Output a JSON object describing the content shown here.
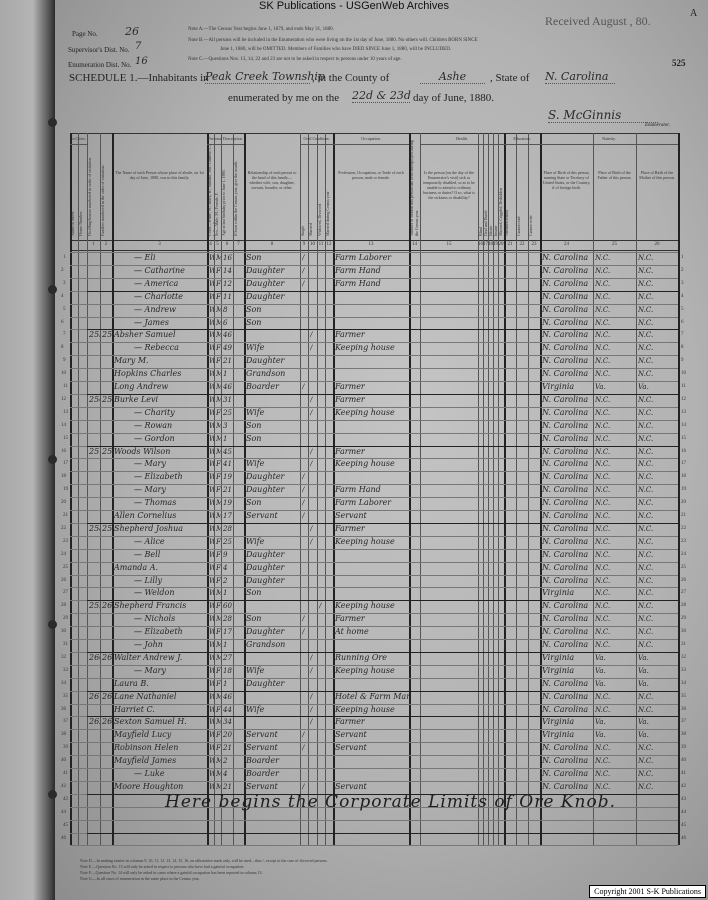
{
  "banner": "SK Publications - USGenWeb Archives",
  "received_stamp": "Received August , 80.",
  "corner_letter": "A",
  "sheet_number": "525",
  "page_info": {
    "page_label": "Page No.",
    "page_value": "26",
    "supervisor_label": "Supervisor's Dist. No.",
    "supervisor_value": "7",
    "enumeration_label": "Enumeration Dist. No.",
    "enumeration_value": "16"
  },
  "notes": [
    "Note A.—The Census Year begins June 1, 1879, and ends May 31, 1880.",
    "Note B.—All persons will be included in the Enumeration who were living on the 1st day of June, 1880. No others will. Children BORN SINCE",
    "June 1, 1880, will be OMITTED. Members of Families who have DIED SINCE June 1, 1880, will be INCLUDED.",
    "Note C.—Questions Nos. 13, 14, 22 and 23 are not to be asked in respect to persons under 10 years of age."
  ],
  "schedule": {
    "prefix": "SCHEDULE 1.—Inhabitants in",
    "township": "Peak Creek Township",
    "county_label": ", in the County of",
    "county": "Ashe",
    "state_label": ", State of",
    "state": "N. Carolina",
    "enumerated_label": "enumerated by me on the",
    "dates": "22d & 23d",
    "enumerated_suffix": "day of June, 1880.",
    "enumerator_signature": "S. McGinnis",
    "enumerator_label": "Enumerator."
  },
  "column_headers": [
    "Name of Street.",
    "House Number.",
    "Dwelling-houses numbered in order of visitation.",
    "Families numbered in the order of visitation.",
    "The Name of each Person whose place of abode, on 1st day of June, 1880, was in this family.",
    "Color—White, W.; Black, B.; Mulatto, Mu.; Chinese, C.; Indian, I.",
    "Sex—Male, M.; Female, F.",
    "Age at last birthday prior to June 1, 1880.",
    "If born within the Census year, give the month.",
    "Relationship of each person to the head of this family—whether wife, son, daughter, servant, boarder, or other.",
    "Single",
    "Married",
    "Widowed, Divorced",
    "Married during Census year",
    "Profession, Occupation, or Trade of each person, male or female.",
    "Number of months this person has been unemployed during the Census year.",
    "Is the person [on the day of the Enumerator's visit] sick or temporarily disabled, so as to be unable to attend to ordinary business or duties? If so, what is the sickness or disability?",
    "Blind",
    "Deaf and Dumb",
    "Idiotic",
    "Insane",
    "Maimed, Crippled, Bedridden",
    "Attended school",
    "Cannot read",
    "Cannot write",
    "Place of Birth of this person, naming State or Territory of United States, or the Country, if of foreign birth.",
    "Place of Birth of the Father of this person.",
    "Place of Birth of the Mother of this person."
  ],
  "group_headers": [
    "In Cities.",
    "Personal Description.",
    "Civil Condition.",
    "Occupation.",
    "Health.",
    "Education.",
    "Nativity."
  ],
  "column_numbers": [
    "1",
    "2",
    "3",
    "4",
    "5",
    "6",
    "7",
    "8",
    "9",
    "10",
    "11",
    "12",
    "13",
    "14",
    "15",
    "16",
    "17",
    "18",
    "19",
    "20",
    "21",
    "22",
    "23",
    "24",
    "25",
    "26"
  ],
  "rows": [
    {
      "n": "1",
      "dw": "",
      "fam": "",
      "name": "Eli",
      "color": "W",
      "sex": "M",
      "age": "16",
      "rel": "Son",
      "single": "/",
      "occ": "Farm Laborer",
      "bp": "N. Carolina",
      "fbp": "N.C.",
      "mbp": "N.C."
    },
    {
      "n": "2",
      "dw": "",
      "fam": "",
      "name": "Catharine",
      "color": "W",
      "sex": "F",
      "age": "14",
      "rel": "Daughter",
      "single": "/",
      "occ": "Farm Hand",
      "bp": "N. Carolina",
      "fbp": "N.C.",
      "mbp": "N.C."
    },
    {
      "n": "3",
      "dw": "",
      "fam": "",
      "name": "America",
      "color": "W",
      "sex": "F",
      "age": "12",
      "rel": "Daughter",
      "single": "/",
      "occ": "Farm Hand",
      "bp": "N. Carolina",
      "fbp": "N.C.",
      "mbp": "N.C."
    },
    {
      "n": "4",
      "dw": "",
      "fam": "",
      "name": "Charlotte",
      "color": "W",
      "sex": "F",
      "age": "11",
      "rel": "Daughter",
      "single": "",
      "occ": "",
      "bp": "N. Carolina",
      "fbp": "N.C.",
      "mbp": "N.C."
    },
    {
      "n": "5",
      "dw": "",
      "fam": "",
      "name": "Andrew",
      "color": "W",
      "sex": "M",
      "age": "8",
      "rel": "Son",
      "single": "",
      "occ": "",
      "bp": "N. Carolina",
      "fbp": "N.C.",
      "mbp": "N.C."
    },
    {
      "n": "6",
      "dw": "",
      "fam": "",
      "name": "James",
      "color": "W",
      "sex": "M",
      "age": "6",
      "rel": "Son",
      "single": "",
      "occ": "",
      "bp": "N. Carolina",
      "fbp": "N.C.",
      "mbp": "N.C."
    },
    {
      "n": "7",
      "dw": "255",
      "fam": "256",
      "name": "Absher Samuel",
      "color": "W",
      "sex": "M",
      "age": "46",
      "rel": "",
      "single": "",
      "married": "/",
      "occ": "Farmer",
      "bp": "N. Carolina",
      "fbp": "N.C.",
      "mbp": "N.C."
    },
    {
      "n": "8",
      "dw": "",
      "fam": "",
      "name": "Rebecca",
      "color": "W",
      "sex": "F",
      "age": "49",
      "rel": "Wife",
      "married": "/",
      "occ": "Keeping house",
      "bp": "N. Carolina",
      "fbp": "N.C.",
      "mbp": "N.C."
    },
    {
      "n": "9",
      "dw": "",
      "fam": "",
      "name": "Mary M.",
      "color": "W",
      "sex": "F",
      "age": "21",
      "rel": "Daughter",
      "single": "",
      "occ": "",
      "bp": "N. Carolina",
      "fbp": "N.C.",
      "mbp": "N.C."
    },
    {
      "n": "10",
      "dw": "",
      "fam": "",
      "name": "Hopkins Charles",
      "color": "W",
      "sex": "M",
      "age": "1",
      "rel": "Grandson",
      "single": "",
      "occ": "",
      "bp": "N. Carolina",
      "fbp": "N.C.",
      "mbp": "N.C."
    },
    {
      "n": "11",
      "dw": "",
      "fam": "",
      "name": "Long Andrew",
      "color": "W",
      "sex": "M",
      "age": "46",
      "rel": "Boarder",
      "single": "/",
      "occ": "Farmer",
      "bp": "Virginia",
      "fbp": "Va.",
      "mbp": "Va."
    },
    {
      "n": "12",
      "dw": "256",
      "fam": "257",
      "name": "Burke Levi",
      "color": "W",
      "sex": "M",
      "age": "31",
      "rel": "",
      "married": "/",
      "occ": "Farmer",
      "bp": "N. Carolina",
      "fbp": "N.C.",
      "mbp": "N.C."
    },
    {
      "n": "13",
      "dw": "",
      "fam": "",
      "name": "Charity",
      "color": "W",
      "sex": "F",
      "age": "25",
      "rel": "Wife",
      "married": "/",
      "occ": "Keeping house",
      "bp": "N. Carolina",
      "fbp": "N.C.",
      "mbp": "N.C."
    },
    {
      "n": "14",
      "dw": "",
      "fam": "",
      "name": "Rowan",
      "color": "W",
      "sex": "M",
      "age": "3",
      "rel": "Son",
      "single": "",
      "occ": "",
      "bp": "N. Carolina",
      "fbp": "N.C.",
      "mbp": "N.C."
    },
    {
      "n": "15",
      "dw": "",
      "fam": "",
      "name": "Gordon",
      "color": "W",
      "sex": "M",
      "age": "1",
      "rel": "Son",
      "single": "",
      "occ": "",
      "bp": "N. Carolina",
      "fbp": "N.C.",
      "mbp": "N.C."
    },
    {
      "n": "16",
      "dw": "257",
      "fam": "258",
      "name": "Woods Wilson",
      "color": "W",
      "sex": "M",
      "age": "45",
      "rel": "",
      "married": "/",
      "occ": "Farmer",
      "bp": "N. Carolina",
      "fbp": "N.C.",
      "mbp": "N.C."
    },
    {
      "n": "17",
      "dw": "",
      "fam": "",
      "name": "Mary",
      "color": "W",
      "sex": "F",
      "age": "41",
      "rel": "Wife",
      "married": "/",
      "occ": "Keeping house",
      "bp": "N. Carolina",
      "fbp": "N.C.",
      "mbp": "N.C."
    },
    {
      "n": "18",
      "dw": "",
      "fam": "",
      "name": "Elizabeth",
      "color": "W",
      "sex": "F",
      "age": "19",
      "rel": "Daughter",
      "single": "/",
      "occ": "",
      "bp": "N. Carolina",
      "fbp": "N.C.",
      "mbp": "N.C."
    },
    {
      "n": "19",
      "dw": "",
      "fam": "",
      "name": "Mary",
      "color": "W",
      "sex": "F",
      "age": "21",
      "rel": "Daughter",
      "single": "/",
      "occ": "Farm Hand",
      "bp": "N. Carolina",
      "fbp": "N.C.",
      "mbp": "N.C."
    },
    {
      "n": "20",
      "dw": "",
      "fam": "",
      "name": "Thomas",
      "color": "W",
      "sex": "M",
      "age": "19",
      "rel": "Son",
      "single": "/",
      "occ": "Farm Laborer",
      "bp": "N. Carolina",
      "fbp": "N.C.",
      "mbp": "N.C."
    },
    {
      "n": "21",
      "dw": "",
      "fam": "",
      "name": "Allen Cornelius",
      "color": "W",
      "sex": "M",
      "age": "17",
      "rel": "Servant",
      "single": "/",
      "occ": "Servant",
      "bp": "N. Carolina",
      "fbp": "N.C.",
      "mbp": "N.C."
    },
    {
      "n": "22",
      "dw": "258",
      "fam": "259",
      "name": "Shepherd Joshua",
      "color": "W",
      "sex": "M",
      "age": "28",
      "rel": "",
      "married": "/",
      "occ": "Farmer",
      "bp": "N. Carolina",
      "fbp": "N.C.",
      "mbp": "N.C."
    },
    {
      "n": "23",
      "dw": "",
      "fam": "",
      "name": "Alice",
      "color": "W",
      "sex": "F",
      "age": "25",
      "rel": "Wife",
      "married": "/",
      "occ": "Keeping house",
      "bp": "N. Carolina",
      "fbp": "N.C.",
      "mbp": "N.C."
    },
    {
      "n": "24",
      "dw": "",
      "fam": "",
      "name": "Bell",
      "color": "W",
      "sex": "F",
      "age": "9",
      "rel": "Daughter",
      "single": "",
      "occ": "",
      "bp": "N. Carolina",
      "fbp": "N.C.",
      "mbp": "N.C."
    },
    {
      "n": "25",
      "dw": "",
      "fam": "",
      "name": "Amanda A.",
      "color": "W",
      "sex": "F",
      "age": "4",
      "rel": "Daughter",
      "single": "",
      "occ": "",
      "bp": "N. Carolina",
      "fbp": "N.C.",
      "mbp": "N.C."
    },
    {
      "n": "26",
      "dw": "",
      "fam": "",
      "name": "Lilly",
      "color": "W",
      "sex": "F",
      "age": "2",
      "rel": "Daughter",
      "single": "",
      "occ": "",
      "bp": "N. Carolina",
      "fbp": "N.C.",
      "mbp": "N.C."
    },
    {
      "n": "27",
      "dw": "",
      "fam": "",
      "name": "Weldon",
      "color": "W",
      "sex": "M",
      "age": "1",
      "rel": "Son",
      "single": "",
      "occ": "",
      "bp": "Virginia",
      "fbp": "N.C.",
      "mbp": "N.C."
    },
    {
      "n": "28",
      "dw": "259",
      "fam": "260",
      "name": "Shepherd Francis",
      "color": "W",
      "sex": "F",
      "age": "60",
      "rel": "",
      "widowed": "/",
      "occ": "Keeping house",
      "bp": "N. Carolina",
      "fbp": "N.C.",
      "mbp": "N.C."
    },
    {
      "n": "29",
      "dw": "",
      "fam": "",
      "name": "Nichols",
      "color": "W",
      "sex": "M",
      "age": "28",
      "rel": "Son",
      "single": "/",
      "occ": "Farmer",
      "bp": "N. Carolina",
      "fbp": "N.C.",
      "mbp": "N.C."
    },
    {
      "n": "30",
      "dw": "",
      "fam": "",
      "name": "Elizabeth",
      "color": "W",
      "sex": "F",
      "age": "17",
      "rel": "Daughter",
      "single": "/",
      "occ": "At home",
      "bp": "N. Carolina",
      "fbp": "N.C.",
      "mbp": "N.C."
    },
    {
      "n": "31",
      "dw": "",
      "fam": "",
      "name": "John",
      "color": "W",
      "sex": "M",
      "age": "1",
      "rel": "Grandson",
      "single": "",
      "occ": "",
      "bp": "N. Carolina",
      "fbp": "N.C.",
      "mbp": "N.C."
    },
    {
      "n": "32",
      "dw": "260",
      "fam": "261",
      "name": "Walter Andrew J.",
      "color": "W",
      "sex": "M",
      "age": "27",
      "rel": "",
      "married": "/",
      "occ": "Running Ore",
      "bp": "Virginia",
      "fbp": "Va.",
      "mbp": "Va."
    },
    {
      "n": "33",
      "dw": "",
      "fam": "",
      "name": "Mary",
      "color": "W",
      "sex": "F",
      "age": "18",
      "rel": "Wife",
      "married": "/",
      "occ": "Keeping house",
      "bp": "Virginia",
      "fbp": "Va.",
      "mbp": "Va."
    },
    {
      "n": "34",
      "dw": "",
      "fam": "",
      "name": "Laura B.",
      "color": "W",
      "sex": "F",
      "age": "1",
      "rel": "Daughter",
      "single": "",
      "occ": "",
      "bp": "N. Carolina",
      "fbp": "Va.",
      "mbp": "Va."
    },
    {
      "n": "35",
      "dw": "261",
      "fam": "262",
      "name": "Lane Nathaniel",
      "color": "W",
      "sex": "M",
      "age": "46",
      "rel": "",
      "married": "/",
      "occ": "Hotel & Farm Manager",
      "bp": "N. Carolina",
      "fbp": "N.C.",
      "mbp": "N.C."
    },
    {
      "n": "36",
      "dw": "",
      "fam": "",
      "name": "Harriet C.",
      "color": "W",
      "sex": "F",
      "age": "44",
      "rel": "Wife",
      "married": "/",
      "occ": "Keeping house",
      "bp": "N. Carolina",
      "fbp": "N.C.",
      "mbp": "N.C."
    },
    {
      "n": "37",
      "dw": "262",
      "fam": "263",
      "name": "Sexton Samuel H.",
      "color": "W",
      "sex": "M",
      "age": "34",
      "rel": "",
      "married": "/",
      "occ": "Farmer",
      "bp": "Virginia",
      "fbp": "Va.",
      "mbp": "Va."
    },
    {
      "n": "38",
      "dw": "",
      "fam": "",
      "name": "Mayfield Lucy",
      "color": "W",
      "sex": "F",
      "age": "20",
      "rel": "Servant",
      "single": "/",
      "occ": "Servant",
      "bp": "Virginia",
      "fbp": "Va.",
      "mbp": "Va."
    },
    {
      "n": "39",
      "dw": "",
      "fam": "",
      "name": "Robinson Helen",
      "color": "W",
      "sex": "F",
      "age": "21",
      "rel": "Servant",
      "single": "/",
      "occ": "Servant",
      "bp": "N. Carolina",
      "fbp": "N.C.",
      "mbp": "N.C."
    },
    {
      "n": "40",
      "dw": "",
      "fam": "",
      "name": "Mayfield James",
      "color": "W",
      "sex": "M",
      "age": "2",
      "rel": "Boarder",
      "single": "",
      "occ": "",
      "bp": "N. Carolina",
      "fbp": "N.C.",
      "mbp": "N.C."
    },
    {
      "n": "41",
      "dw": "",
      "fam": "",
      "name": "Luke",
      "color": "W",
      "sex": "M",
      "age": "4",
      "rel": "Boarder",
      "single": "",
      "occ": "",
      "bp": "N. Carolina",
      "fbp": "N.C.",
      "mbp": "N.C."
    },
    {
      "n": "42",
      "dw": "",
      "fam": "",
      "name": "Moore Houghton",
      "color": "W",
      "sex": "M",
      "age": "21",
      "rel": "Servant",
      "single": "/",
      "occ": "Servant",
      "bp": "N. Carolina",
      "fbp": "N.C.",
      "mbp": "N.C."
    }
  ],
  "remark": "Here begins the Corporate Limits of Ore Knob.",
  "footer_notes": [
    "Note D.—In making entries in columns 9, 10, 11, 12, 13, 14, 15, 16, an affirmative mark only, will be used—thus /, except in the case of divorced persons.",
    "Note E.—Question No. 13 will only be asked in respect to persons who have had a gainful occupation.",
    "Note F.—Question No. 14 will only be asked in cases where a gainful occupation has been reported in column 13.",
    "Note G.—In all cases of enumeration in the same place in the Census year."
  ],
  "copyright": "Copyright 2001 S-K Publications"
}
